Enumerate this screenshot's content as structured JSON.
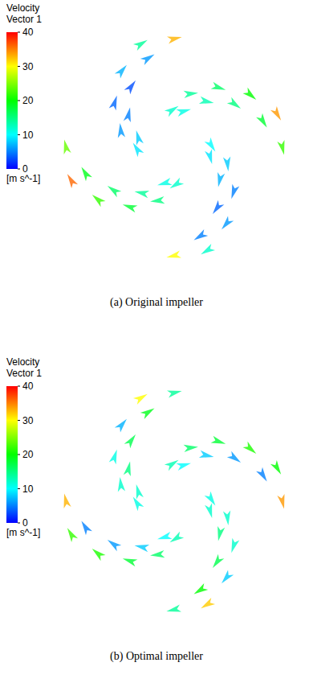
{
  "chart_data": [
    {
      "type": "vector",
      "caption": "(a) Original impeller",
      "colorbar_title": [
        "Velocity",
        "Vector 1"
      ],
      "colorbar_unit": "[m s^-1]",
      "color_range": [
        0,
        40
      ],
      "color_ticks": [
        0,
        10,
        20,
        30,
        40
      ],
      "tick_labels": false,
      "xlim": [
        -1.05,
        1.05
      ],
      "ylim": [
        -1.05,
        1.05
      ],
      "vectors": {
        "x": [
          0.037,
          0.203,
          0.435,
          0.693,
          0.902,
          0.348,
          0.457,
          0.483,
          0.4,
          0.225,
          -0.037,
          -0.203,
          -0.435,
          -0.693,
          -0.902,
          -0.348,
          -0.457,
          -0.483,
          -0.4,
          -0.225,
          0.142,
          0.335,
          0.563,
          0.783,
          0.928,
          0.32,
          0.372,
          0.325,
          0.166,
          -0.065,
          -0.142,
          -0.335,
          -0.563,
          -0.783,
          -0.928,
          -0.32,
          -0.372,
          -0.325,
          -0.166,
          0.065
        ],
        "y": [
          0.348,
          0.457,
          0.483,
          0.4,
          0.225,
          -0.037,
          -0.203,
          -0.435,
          -0.693,
          -0.902,
          -0.348,
          -0.457,
          -0.483,
          -0.4,
          -0.225,
          0.037,
          0.203,
          0.435,
          0.693,
          0.902,
          0.32,
          0.372,
          0.325,
          0.166,
          -0.065,
          -0.142,
          -0.335,
          -0.563,
          -0.783,
          -0.928,
          -0.32,
          -0.372,
          -0.325,
          -0.166,
          0.065,
          0.142,
          0.335,
          0.563,
          0.783,
          0.928
        ],
        "direction": [
          33,
          6,
          -18,
          -40,
          -59,
          -57,
          -84,
          -108,
          -130,
          -149,
          -147,
          -174,
          162,
          140,
          121,
          123,
          96,
          72,
          50,
          31,
          15,
          -12,
          -36,
          -58,
          -77,
          -75,
          -102,
          -126,
          -148,
          -167,
          -165,
          168,
          144,
          122,
          103,
          105,
          78,
          54,
          32,
          13
        ],
        "speed": [
          12,
          14,
          16,
          20,
          34,
          10,
          8,
          5,
          6,
          12,
          12,
          15,
          18,
          22,
          36,
          9,
          6,
          4,
          7,
          14,
          11,
          13,
          15,
          18,
          22,
          9,
          7,
          4,
          5,
          30,
          11,
          14,
          16,
          19,
          24,
          8,
          5,
          3,
          6,
          33
        ]
      }
    },
    {
      "type": "vector",
      "caption": "(b) Optimal impeller",
      "colorbar_title": [
        "Velocity",
        "Vector 1"
      ],
      "colorbar_unit": "[m s^-1]",
      "color_range": [
        0,
        40
      ],
      "color_ticks": [
        0,
        10,
        20,
        30,
        40
      ],
      "tick_labels": false,
      "xlim": [
        -1.05,
        1.05
      ],
      "ylim": [
        -1.05,
        1.05
      ],
      "vectors": {
        "x": [
          0.037,
          0.203,
          0.435,
          0.693,
          0.902,
          0.348,
          0.457,
          0.483,
          0.4,
          0.225,
          -0.037,
          -0.203,
          -0.435,
          -0.693,
          -0.902,
          -0.348,
          -0.457,
          -0.483,
          -0.4,
          -0.225,
          0.142,
          0.335,
          0.563,
          0.783,
          0.928,
          0.32,
          0.372,
          0.325,
          0.166,
          -0.065,
          -0.142,
          -0.335,
          -0.563,
          -0.783,
          -0.928,
          -0.32,
          -0.372,
          -0.325,
          -0.166,
          0.065
        ],
        "y": [
          0.348,
          0.457,
          0.483,
          0.4,
          0.225,
          -0.037,
          -0.203,
          -0.435,
          -0.693,
          -0.902,
          -0.348,
          -0.457,
          -0.483,
          -0.4,
          -0.225,
          0.037,
          0.203,
          0.435,
          0.693,
          0.902,
          0.32,
          0.372,
          0.325,
          0.166,
          -0.065,
          -0.142,
          -0.335,
          -0.563,
          -0.783,
          -0.928,
          -0.32,
          -0.372,
          -0.325,
          -0.166,
          0.065,
          0.142,
          0.335,
          0.563,
          0.783,
          0.928
        ],
        "direction": [
          33,
          6,
          -18,
          -40,
          -59,
          -57,
          -84,
          -108,
          -130,
          -149,
          -147,
          -174,
          162,
          140,
          121,
          123,
          96,
          72,
          50,
          31,
          15,
          -12,
          -36,
          -58,
          -77,
          -75,
          -102,
          -126,
          -148,
          -167,
          -165,
          168,
          144,
          122,
          103,
          105,
          78,
          54,
          32,
          13
        ],
        "speed": [
          13,
          16,
          18,
          21,
          20,
          11,
          12,
          12,
          8,
          32,
          13,
          16,
          18,
          21,
          22,
          11,
          12,
          11,
          7,
          30,
          10,
          8,
          6,
          5,
          34,
          12,
          15,
          17,
          20,
          14,
          10,
          8,
          6,
          5,
          33,
          12,
          15,
          17,
          19,
          14
        ]
      }
    }
  ]
}
